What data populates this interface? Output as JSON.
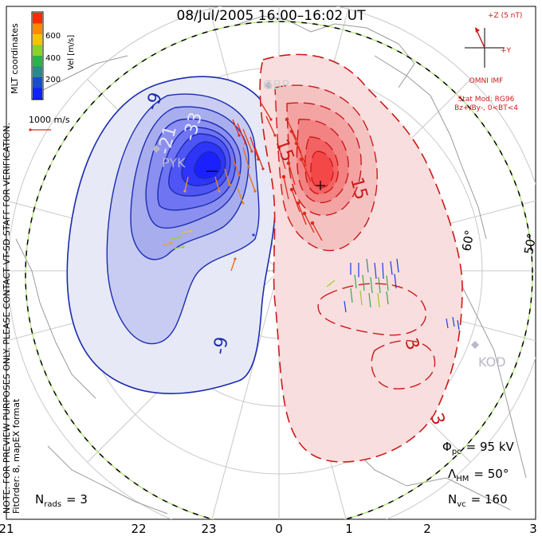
{
  "title": "08/Jul/2005  16:00–16:02  UT",
  "colorbar": {
    "label": "Vel [m/s]",
    "ticks": [
      "600",
      "400",
      "200"
    ],
    "colors": [
      "#ff2a00",
      "#ff8a00",
      "#f5c400",
      "#8bd12a",
      "#2bb24a",
      "#2a8a8a",
      "#1a4cc8",
      "#1020ff"
    ]
  },
  "coordinates_label": "MLT coordinates",
  "watermark": "NOTE: FOR PREVIEW PURPOSES ONLY. PLEASE CONTACT VT-SD STAFF FOR VERIFICATION.",
  "fit_order": "FitOrder: 8, mapEX format",
  "vector_scale": "1000 m/s",
  "stations": [
    "PYK",
    "KOD",
    "GBR"
  ],
  "contours": {
    "neg": [
      "-9",
      "-21",
      "-33",
      "-9"
    ],
    "pos": [
      "15",
      "15",
      "3",
      "3"
    ]
  },
  "latitude_labels": [
    "60°",
    "50°"
  ],
  "imf": {
    "z_label": "+Z (5 nT)",
    "y_label": "+Y",
    "source": "OMNI IMF",
    "stat_mod": "Stat Mod: RG96",
    "condition": "Bz+/By-, 0<BT<4"
  },
  "stats": {
    "phi_pc_label": "Φ",
    "phi_pc_sub": "pc",
    "phi_pc_value": "= 95 kV",
    "lambda_hm_label": "Λ",
    "lambda_hm_sub": "HM",
    "lambda_hm_value": "= 50°",
    "n_vc_label": "N",
    "n_vc_sub": "vc",
    "n_vc_value": "= 160",
    "n_rads_label": "N",
    "n_rads_sub": "rads",
    "n_rads_value": "= 3"
  },
  "mlt_axis": [
    "21",
    "22",
    "23",
    "0",
    "1",
    "2",
    "3"
  ]
}
